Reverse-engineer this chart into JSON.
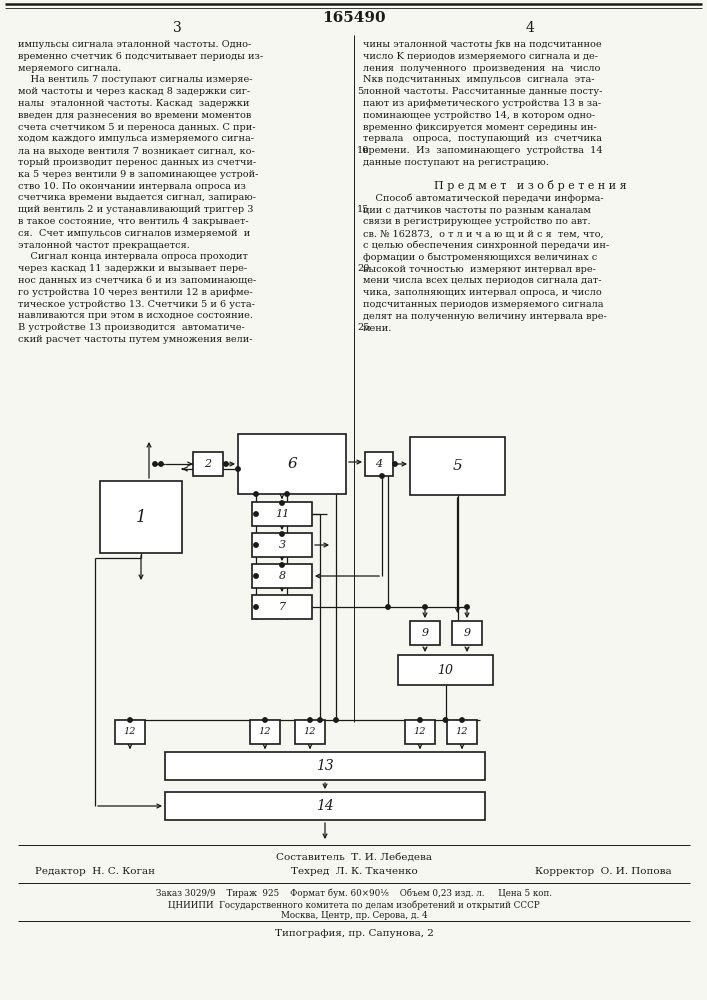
{
  "title": "165490",
  "bg_color": "#f7f7f2",
  "line_color": "#1a1a1a",
  "box_color": "#ffffff",
  "text_color": "#1a1a1a",
  "footer_compiler": "Составитель  Т. И. Лебедева",
  "footer_editor": "Редактор  Н. С. Коган",
  "footer_techred": "Техред  Л. К. Ткаченко",
  "footer_corrector": "Корректор  О. И. Попова",
  "footer_details": "Заказ 3029/9    Тираж  925    Формат бум. 60×90¹⁄₈    Объем 0,23 изд. л.     Цена 5 коп.",
  "footer_org": "ЦНИИПИ  Государственного комитета по делам изобретений и открытий СССР",
  "footer_addr1": "Москва, Центр, пр. Серова, д. 4",
  "footer_print": "Типография, пр. Сапунова, 2"
}
